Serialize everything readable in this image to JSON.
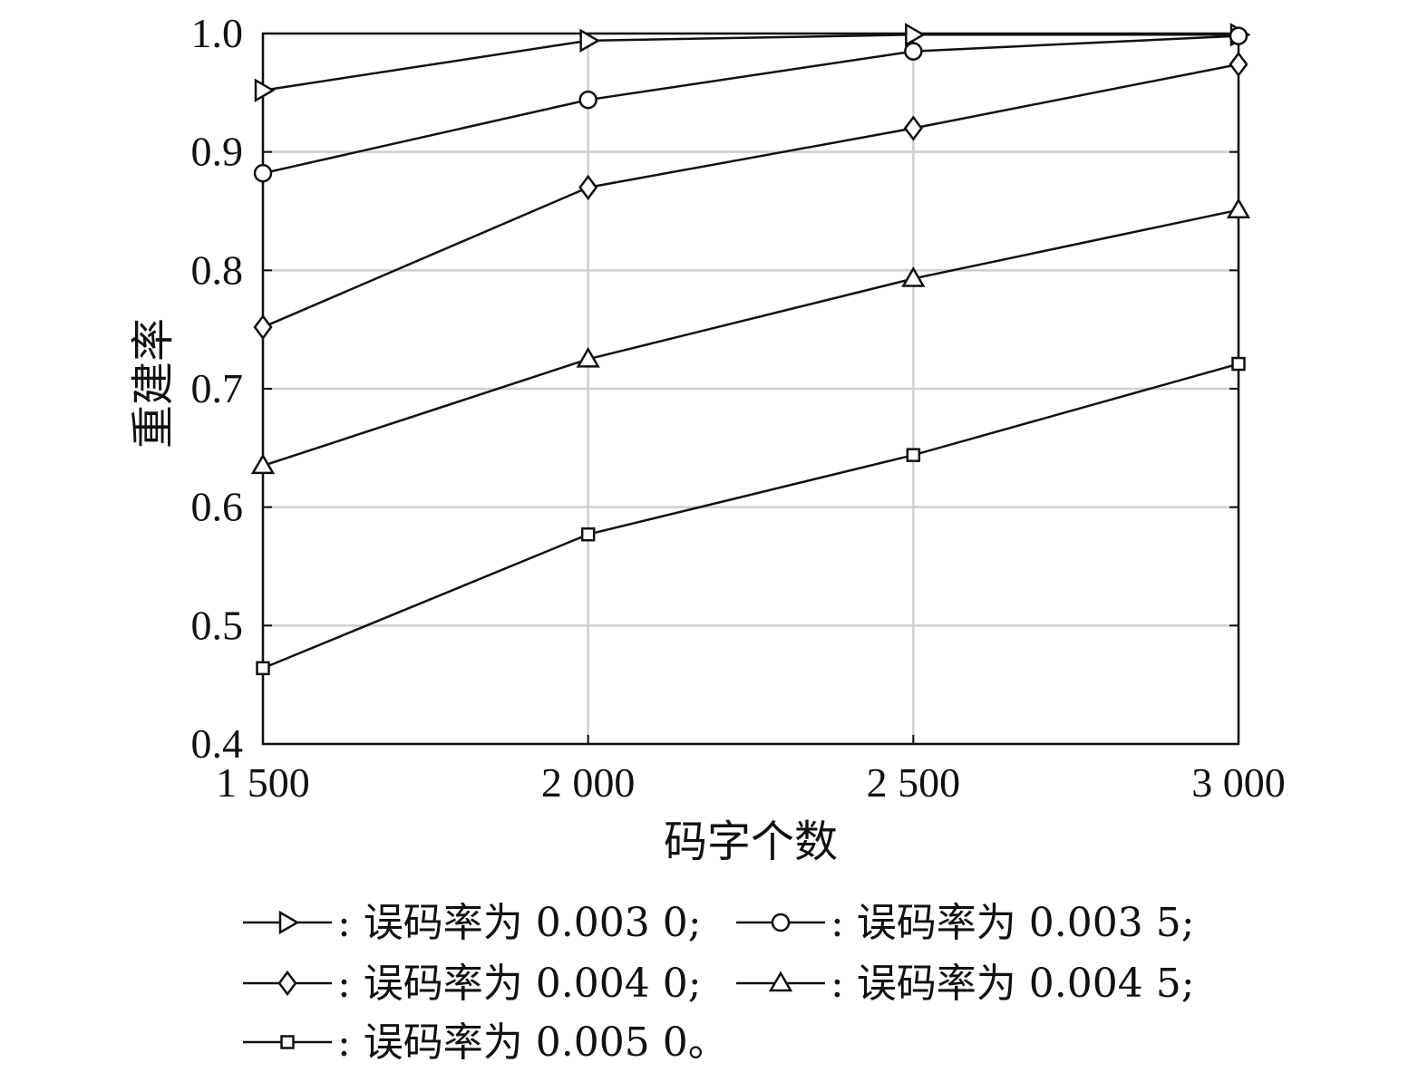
{
  "chart_data": {
    "type": "line",
    "title": "",
    "xlabel": "码字个数",
    "ylabel": "重建率",
    "x": [
      1500,
      2000,
      2500,
      3000
    ],
    "x_tick_labels": [
      "1 500",
      "2 000",
      "2 500",
      "3 000"
    ],
    "xlim": [
      1500,
      3000
    ],
    "ylim": [
      0.4,
      1.0
    ],
    "y_ticks": [
      0.4,
      0.5,
      0.6,
      0.7,
      0.8,
      0.9,
      1.0
    ],
    "y_tick_labels": [
      "0.4",
      "0.5",
      "0.6",
      "0.7",
      "0.8",
      "0.9",
      "1.0"
    ],
    "grid": true,
    "legend_position": "bottom",
    "series": [
      {
        "name": ": 误码率为 0.003 0;",
        "marker": "triangle-right",
        "values": [
          0.952,
          0.994,
          0.999,
          0.999
        ]
      },
      {
        "name": ": 误码率为 0.003 5;",
        "marker": "circle",
        "values": [
          0.882,
          0.944,
          0.985,
          0.998
        ]
      },
      {
        "name": ": 误码率为 0.004 0;",
        "marker": "diamond",
        "values": [
          0.752,
          0.87,
          0.92,
          0.974
        ]
      },
      {
        "name": ": 误码率为 0.004 5;",
        "marker": "triangle-up",
        "values": [
          0.635,
          0.725,
          0.793,
          0.851
        ]
      },
      {
        "name": ": 误码率为 0.005 0。",
        "marker": "square",
        "values": [
          0.464,
          0.577,
          0.644,
          0.721
        ]
      }
    ]
  }
}
